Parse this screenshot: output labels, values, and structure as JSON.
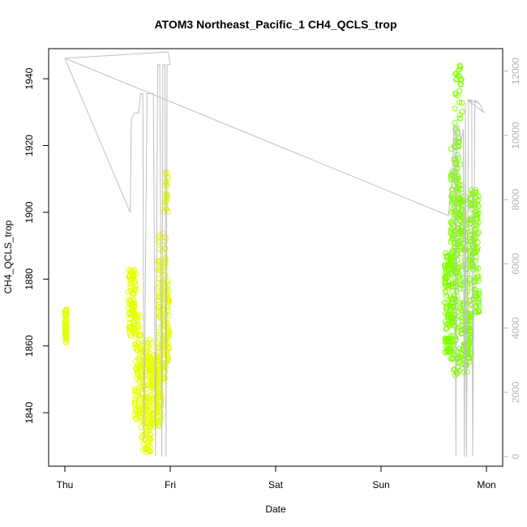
{
  "chart_data": {
    "type": "scatter",
    "title": "ATOM3 Northeast_Pacific_1 CH4_QCLS_trop",
    "xlabel": "Date",
    "ylabel": "CH4_QCLS_trop",
    "x_ticks": [
      "Thu",
      "Fri",
      "Sat",
      "Sun",
      "Mon"
    ],
    "xlim": [
      0,
      4.1
    ],
    "ylim": [
      1824,
      1949
    ],
    "y_ticks": [
      1840,
      1860,
      1880,
      1900,
      1920,
      1940
    ],
    "y2lim": [
      -300,
      12700
    ],
    "y2_ticks": [
      0,
      2000,
      4000,
      6000,
      8000,
      10000,
      12000
    ],
    "grid": false,
    "colors": {
      "point_early": "#e6ff00",
      "point_late": "#80ff00",
      "altitude_line": "#bebebe",
      "right_axis": "#b3b3b3"
    },
    "ch4_clusters": [
      {
        "x": [
          0.0,
          0.02
        ],
        "y": [
          1861,
          1871
        ],
        "n": 60
      },
      {
        "x": [
          0.6,
          0.68
        ],
        "y": [
          1863,
          1883
        ],
        "n": 90
      },
      {
        "x": [
          0.66,
          0.72
        ],
        "y": [
          1838,
          1870
        ],
        "n": 80
      },
      {
        "x": [
          0.72,
          0.82
        ],
        "y": [
          1828,
          1862
        ],
        "n": 150
      },
      {
        "x": [
          0.82,
          0.92
        ],
        "y": [
          1836,
          1858
        ],
        "n": 150
      },
      {
        "x": [
          0.88,
          0.96
        ],
        "y": [
          1850,
          1895
        ],
        "n": 110
      },
      {
        "x": [
          0.93,
          0.99
        ],
        "y": [
          1855,
          1880
        ],
        "n": 80
      },
      {
        "x": [
          0.94,
          0.98
        ],
        "y": [
          1900,
          1913
        ],
        "n": 30
      },
      {
        "x": [
          3.6,
          3.68
        ],
        "y": [
          1858,
          1888
        ],
        "n": 120
      },
      {
        "x": [
          3.66,
          3.74
        ],
        "y": [
          1850,
          1920
        ],
        "n": 170
      },
      {
        "x": [
          3.7,
          3.77
        ],
        "y": [
          1880,
          1944
        ],
        "n": 80
      },
      {
        "x": [
          3.74,
          3.82
        ],
        "y": [
          1852,
          1905
        ],
        "n": 130
      },
      {
        "x": [
          3.8,
          3.86
        ],
        "y": [
          1855,
          1870
        ],
        "n": 60
      },
      {
        "x": [
          3.84,
          3.93
        ],
        "y": [
          1870,
          1907
        ],
        "n": 140
      }
    ],
    "altitude_series": {
      "x": [
        0.0,
        0.62,
        0.63,
        0.66,
        0.68,
        0.7,
        0.72,
        0.74,
        0.75,
        0.78,
        0.8,
        0.84,
        0.86,
        0.88,
        0.9,
        0.92,
        0.93,
        0.95,
        0.96,
        0.97,
        0.98,
        0.99,
        1.0,
        0.98,
        0.0,
        3.64,
        3.66,
        3.68,
        3.69,
        3.7,
        3.71,
        3.72,
        3.74,
        3.76,
        3.78,
        3.79,
        3.8,
        3.81,
        3.83,
        3.86,
        3.87,
        3.89,
        3.93,
        3.95,
        3.96,
        3.98,
        3.82,
        3.93
      ],
      "y": [
        12400,
        7600,
        10500,
        10700,
        10700,
        10700,
        11300,
        11300,
        500,
        11300,
        11300,
        11300,
        0,
        12200,
        12200,
        0,
        12200,
        12200,
        0,
        12200,
        12200,
        12200,
        12200,
        12600,
        12400,
        7500,
        8200,
        9000,
        10300,
        10300,
        0,
        10300,
        10300,
        9800,
        10200,
        0,
        11000,
        0,
        11100,
        11100,
        0,
        11100,
        11000,
        10900,
        10800,
        10700,
        11100,
        11000
      ]
    }
  }
}
